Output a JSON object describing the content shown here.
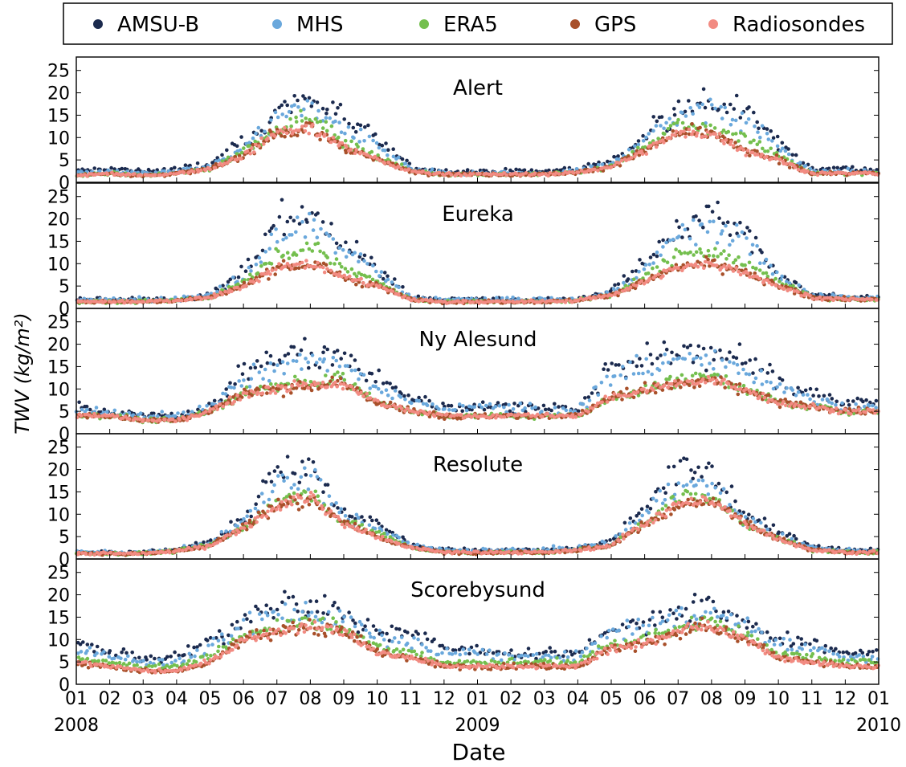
{
  "legend": [
    {
      "label": "AMSU-B",
      "color": "#1b2a4e"
    },
    {
      "label": "MHS",
      "color": "#6aa8dc"
    },
    {
      "label": "ERA5",
      "color": "#74bf4e"
    },
    {
      "label": "GPS",
      "color": "#a8502a"
    },
    {
      "label": "Radiosondes",
      "color": "#f28b82"
    }
  ],
  "y_axis_label": "TWV (kg/m²)",
  "x_axis_label": "Date",
  "chart_data": {
    "type": "scatter",
    "xlabel": "Date",
    "ylabel": "TWV (kg/m²)",
    "xlim": [
      "2008-01-01",
      "2010-01-01"
    ],
    "ylim": [
      0,
      28
    ],
    "yticks": [
      0,
      5,
      10,
      15,
      20,
      25
    ],
    "xtick_labels": [
      "01",
      "02",
      "03",
      "04",
      "05",
      "06",
      "07",
      "08",
      "09",
      "10",
      "11",
      "12",
      "01",
      "02",
      "03",
      "04",
      "05",
      "06",
      "07",
      "08",
      "09",
      "10",
      "11",
      "12",
      "01"
    ],
    "year_labels": [
      {
        "date": "2008-01-01",
        "label": "2008"
      },
      {
        "date": "2009-01-01",
        "label": "2009"
      },
      {
        "date": "2010-01-01",
        "label": "2010"
      }
    ],
    "legend_position": "top",
    "grid": false,
    "series_names": [
      "AMSU-B",
      "MHS",
      "ERA5",
      "GPS",
      "Radiosondes"
    ],
    "panels": [
      {
        "station": "Alert",
        "monthly_mean": {
          "AMSU-B": [
            2.5,
            3,
            2.5,
            3,
            4,
            9,
            16,
            19,
            14,
            10,
            3.5,
            2.5,
            2.5,
            2.5,
            2.5,
            3,
            5,
            11,
            17,
            18,
            16,
            9,
            3,
            3
          ],
          "MHS": [
            2,
            2.5,
            2,
            2.5,
            3.5,
            8,
            14,
            17,
            12,
            8,
            3,
            2,
            2,
            2,
            2,
            2.5,
            4,
            10,
            15,
            16,
            14,
            8,
            2.5,
            2.5
          ],
          "ERA5": [
            1.5,
            2,
            1.5,
            2,
            3,
            7,
            12,
            15,
            9,
            6,
            2.5,
            1.8,
            1.8,
            1.8,
            1.8,
            2.2,
            3.5,
            8,
            13,
            12,
            10,
            6,
            2,
            2
          ],
          "GPS": [
            1.5,
            2,
            1.5,
            2,
            3,
            6,
            11,
            12,
            8,
            5,
            2.5,
            1.8,
            1.8,
            1.8,
            1.8,
            2.2,
            3.5,
            7,
            11,
            11,
            7,
            5,
            2,
            2
          ],
          "Radiosondes": [
            1.5,
            2,
            1.5,
            2,
            3,
            6,
            11,
            12,
            8,
            5,
            2.5,
            1.8,
            1.8,
            1.8,
            1.8,
            2.2,
            3.5,
            7,
            11,
            11,
            7,
            5,
            2,
            2
          ]
        }
      },
      {
        "station": "Eureka",
        "monthly_mean": {
          "AMSU-B": [
            2,
            2,
            2,
            2,
            3,
            8,
            19,
            21,
            15,
            9,
            2.5,
            2,
            2,
            2,
            2,
            2,
            4,
            10,
            18,
            21,
            17,
            8,
            3,
            2.5
          ],
          "MHS": [
            2,
            2,
            2,
            2,
            3,
            7,
            16,
            19,
            13,
            8,
            2.5,
            2,
            2,
            2,
            2,
            2,
            3.5,
            9,
            16,
            18,
            15,
            7,
            3,
            2.5
          ],
          "ERA5": [
            1.5,
            1.5,
            1.5,
            1.8,
            2.5,
            6,
            12,
            14,
            9,
            6,
            2,
            1.5,
            1.5,
            1.5,
            1.5,
            1.8,
            3,
            7,
            12,
            13,
            10,
            6,
            2.5,
            2
          ],
          "GPS": [
            1.5,
            1.5,
            1.5,
            1.8,
            2.5,
            5,
            9,
            10,
            7,
            5,
            2,
            1.5,
            1.5,
            1.5,
            1.5,
            1.8,
            3,
            6,
            9,
            10,
            8,
            5,
            2.5,
            2
          ],
          "Radiosondes": [
            1.5,
            1.5,
            1.5,
            1.8,
            2.5,
            5,
            9,
            10,
            7,
            5,
            2,
            1.5,
            1.5,
            1.5,
            1.5,
            1.8,
            3,
            6,
            9,
            10,
            8,
            5,
            2.5,
            2
          ]
        }
      },
      {
        "station": "Ny Alesund",
        "monthly_mean": {
          "AMSU-B": [
            6,
            5,
            4,
            4,
            6,
            14,
            17,
            18,
            17,
            12,
            8,
            6,
            6,
            6,
            6,
            5,
            15,
            17,
            18,
            18,
            16,
            12,
            9,
            7
          ],
          "MHS": [
            5,
            5,
            4,
            4,
            6,
            12,
            15,
            16,
            15,
            10,
            7,
            6,
            6,
            6,
            5,
            5,
            13,
            15,
            16,
            16,
            14,
            10,
            8,
            6
          ],
          "ERA5": [
            4,
            4,
            3,
            3,
            5,
            9,
            11,
            12,
            12,
            7,
            5,
            4,
            4,
            4,
            4,
            4,
            8,
            10,
            12,
            13,
            10,
            7,
            6,
            5
          ],
          "GPS": [
            4,
            4,
            3,
            3,
            5,
            9,
            10,
            11,
            11,
            7,
            5,
            4,
            4,
            4,
            4,
            4,
            8,
            10,
            11,
            12,
            10,
            7,
            6,
            5
          ],
          "Radiosondes": [
            4,
            4,
            3,
            3,
            5,
            9,
            10,
            11,
            11,
            7,
            5,
            4,
            4,
            4,
            4,
            4,
            8,
            10,
            11,
            12,
            10,
            7,
            6,
            5
          ]
        }
      },
      {
        "station": "Resolute",
        "monthly_mean": {
          "AMSU-B": [
            1.5,
            1.5,
            1.5,
            2,
            4,
            9,
            20,
            21,
            10,
            8,
            3,
            2,
            2,
            2,
            2,
            2.5,
            4,
            12,
            20,
            18,
            10,
            6,
            3,
            2
          ],
          "MHS": [
            1.5,
            1.5,
            1.5,
            2,
            3.5,
            8,
            17,
            18,
            9,
            7,
            3,
            2,
            2,
            2,
            2,
            2.5,
            3.5,
            10,
            17,
            16,
            9,
            5,
            2.5,
            2
          ],
          "ERA5": [
            1.2,
            1.2,
            1.2,
            1.8,
            3,
            7,
            13,
            15,
            8,
            6,
            2.5,
            1.5,
            1.5,
            1.5,
            1.5,
            2,
            3,
            8,
            14,
            14,
            8,
            4.5,
            2,
            1.5
          ],
          "GPS": [
            1.2,
            1.2,
            1.2,
            1.8,
            3,
            7,
            12,
            14,
            8,
            5,
            2.5,
            1.5,
            1.5,
            1.5,
            1.5,
            2,
            3,
            8,
            12,
            13,
            8,
            4.5,
            2,
            1.5
          ],
          "Radiosondes": [
            1.2,
            1.2,
            1.2,
            1.8,
            3,
            7,
            12,
            14,
            8,
            5,
            2.5,
            1.5,
            1.5,
            1.5,
            1.5,
            2,
            3,
            8,
            12,
            13,
            8,
            4.5,
            2,
            1.5
          ]
        }
      },
      {
        "station": "Scorebysund",
        "monthly_mean": {
          "AMSU-B": [
            9,
            7,
            6,
            6,
            9,
            15,
            18,
            18,
            16,
            12,
            11,
            8,
            8,
            7,
            7,
            7,
            13,
            14,
            17,
            17,
            14,
            10,
            9,
            7
          ],
          "MHS": [
            8,
            6,
            5,
            5,
            8,
            13,
            16,
            16,
            14,
            10,
            9,
            7,
            7,
            6,
            6,
            6,
            12,
            13,
            15,
            16,
            13,
            9,
            8,
            6
          ],
          "ERA5": [
            6,
            5,
            4,
            4,
            6,
            11,
            13,
            14,
            13,
            8,
            7,
            5,
            5,
            5,
            5,
            5,
            9,
            10,
            13,
            14,
            11,
            7,
            6,
            5
          ],
          "GPS": [
            5,
            4,
            3,
            3,
            5,
            10,
            12,
            13,
            12,
            7,
            6,
            4,
            4,
            4,
            4,
            4,
            8,
            9,
            12,
            13,
            10,
            6,
            5,
            4
          ],
          "Radiosondes": [
            5,
            4,
            3,
            3,
            5,
            10,
            12,
            13,
            12,
            7,
            6,
            4,
            4,
            4,
            4,
            4,
            8,
            9,
            12,
            13,
            10,
            6,
            5,
            4
          ]
        }
      }
    ]
  }
}
